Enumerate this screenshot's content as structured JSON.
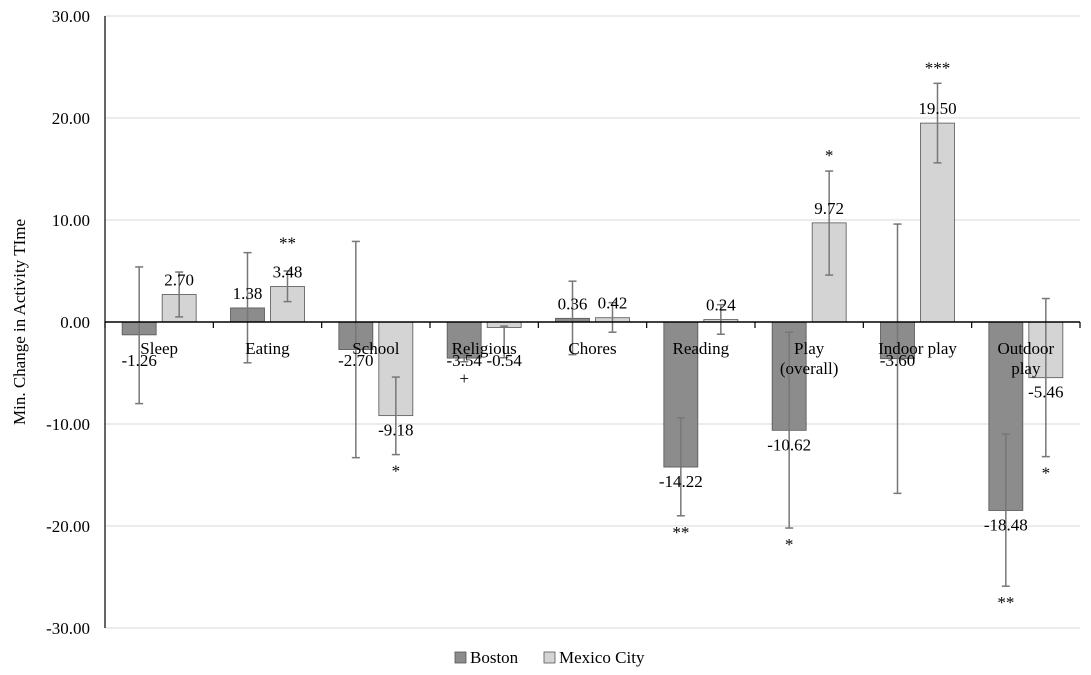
{
  "chart_data": {
    "type": "bar",
    "title": "",
    "xlabel": "",
    "ylabel": "Min. Change in Activity TIme",
    "ylim": [
      -30,
      30
    ],
    "yticks": [
      30,
      20,
      10,
      0,
      -10,
      -20,
      -30
    ],
    "ytick_labels": [
      "30.00",
      "20.00",
      "10.00",
      "0.00",
      "-10.00",
      "-20.00",
      "-30.00"
    ],
    "categories": [
      "Sleep",
      "Eating",
      "School",
      "Religious",
      "Chores",
      "Reading",
      "Play (overall)",
      "Indoor play",
      "Outdoor play"
    ],
    "category_label_lines": [
      [
        "Sleep"
      ],
      [
        "Eating"
      ],
      [
        "School"
      ],
      [
        "Religious"
      ],
      [
        "Chores"
      ],
      [
        "Reading"
      ],
      [
        "Play",
        "(overall)"
      ],
      [
        "Indoor play"
      ],
      [
        "Outdoor",
        "play"
      ]
    ],
    "series": [
      {
        "name": "Boston",
        "color": "#8c8c8c",
        "values": [
          -1.26,
          1.38,
          -2.7,
          -3.54,
          0.36,
          -14.22,
          -10.62,
          -3.6,
          -18.48
        ],
        "value_labels": [
          "-1.26",
          "1.38",
          "-2.70",
          "-3.54",
          "0.36",
          "-14.22",
          "-10.62",
          "-3.60",
          "-18.48"
        ],
        "error_low": [
          -8.0,
          -4.0,
          -13.3,
          -3.9,
          -3.2,
          -19.0,
          -20.2,
          -16.8,
          -25.9
        ],
        "error_high": [
          5.4,
          6.8,
          7.9,
          -3.2,
          4.0,
          -9.4,
          -1.0,
          9.6,
          -11.0
        ],
        "significance": [
          "",
          "",
          "",
          "+",
          "",
          "**",
          "*",
          "",
          "**"
        ]
      },
      {
        "name": "Mexico City",
        "color": "#d4d4d4",
        "values": [
          2.7,
          3.48,
          -9.18,
          -0.54,
          0.42,
          0.24,
          9.72,
          19.5,
          -5.46
        ],
        "value_labels": [
          "2.70",
          "3.48",
          "-9.18",
          "-0.54",
          "0.42",
          "0.24",
          "9.72",
          "19.50",
          "-5.46"
        ],
        "error_low": [
          0.5,
          2.0,
          -13.0,
          -3.5,
          -1.0,
          -1.2,
          4.6,
          15.6,
          -13.2
        ],
        "error_high": [
          4.9,
          5.0,
          -5.4,
          -0.4,
          1.9,
          1.7,
          14.8,
          23.4,
          2.3
        ],
        "significance": [
          "",
          "**",
          "*",
          "",
          "",
          "",
          "*",
          "***",
          "*"
        ]
      }
    ],
    "legend": {
      "position": "bottom",
      "entries": [
        "Boston",
        "Mexico City"
      ]
    },
    "grid": true
  }
}
